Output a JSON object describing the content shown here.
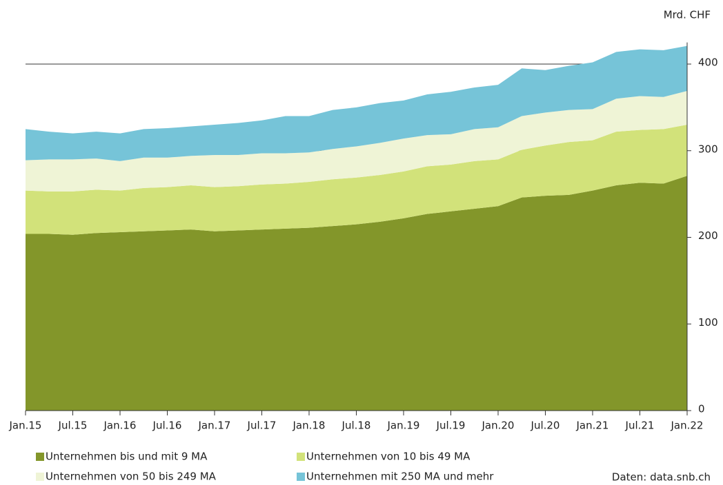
{
  "chart_data": {
    "type": "stacked_area",
    "unit_label": "Mrd. CHF",
    "source": "Daten: data.snb.ch",
    "categories": [
      "Jan.15",
      null,
      "Jul.15",
      null,
      "Jan.16",
      null,
      "Jul.16",
      null,
      "Jan.17",
      null,
      "Jul.17",
      null,
      "Jan.18",
      null,
      "Jul.18",
      null,
      "Jan.19",
      null,
      "Jul.19",
      null,
      "Jan.20",
      null,
      "Jul.20",
      null,
      "Jan.21",
      null,
      "Jul.21",
      null,
      "Jan.22"
    ],
    "series": [
      {
        "name": "Unternehmen bis und mit 9 MA",
        "color": "#83962a",
        "values": [
          204,
          204,
          203,
          205,
          206,
          207,
          208,
          209,
          207,
          208,
          209,
          210,
          211,
          213,
          215,
          218,
          222,
          227,
          230,
          233,
          236,
          246,
          248,
          249,
          254,
          260,
          263,
          262,
          271
        ]
      },
      {
        "name": "Unternehmen von 10 bis 49 MA",
        "color": "#d2e27a",
        "values": [
          50,
          49,
          50,
          50,
          48,
          50,
          50,
          51,
          51,
          51,
          52,
          52,
          53,
          54,
          54,
          54,
          54,
          55,
          54,
          55,
          54,
          55,
          58,
          61,
          58,
          62,
          61,
          63,
          59
        ]
      },
      {
        "name": "Unternehmen von 50 bis 249 MA",
        "color": "#eff4d6",
        "values": [
          35,
          37,
          37,
          36,
          34,
          35,
          34,
          34,
          37,
          36,
          36,
          35,
          34,
          35,
          36,
          37,
          38,
          36,
          35,
          37,
          37,
          39,
          38,
          37,
          36,
          38,
          39,
          37,
          39
        ]
      },
      {
        "name": "Unternehmen mit 250 MA und mehr",
        "color": "#76c4d8",
        "values": [
          36,
          32,
          30,
          31,
          32,
          33,
          34,
          34,
          35,
          37,
          38,
          43,
          42,
          45,
          45,
          46,
          44,
          47,
          49,
          48,
          49,
          55,
          49,
          51,
          54,
          54,
          54,
          54,
          52
        ]
      }
    ],
    "ylim": [
      0,
      425
    ],
    "yticks": [
      0,
      100,
      200,
      300,
      400
    ],
    "grid": true
  }
}
